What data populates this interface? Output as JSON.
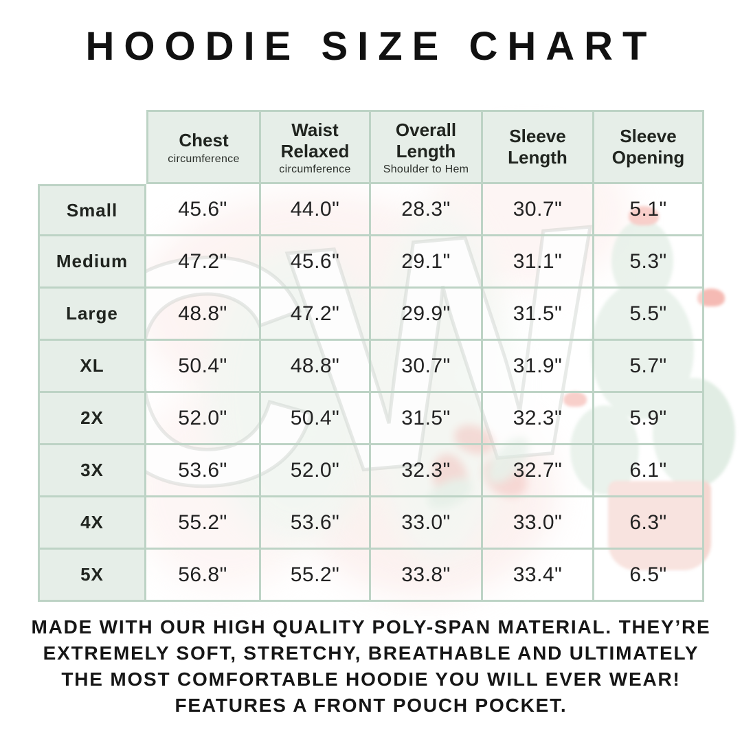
{
  "title": "HOODIE SIZE CHART",
  "watermark": {
    "text": "CW"
  },
  "colors": {
    "grid_line": "#bdd3c5",
    "header_bg": "#e6eee8",
    "title_text": "#111111",
    "body_text": "#222222",
    "watermark_pink": "#fbe7e5",
    "watermark_green": "#d7e7db",
    "watermark_flower": "#f2a49b"
  },
  "table": {
    "columns": [
      {
        "label": "Chest",
        "sub": "circumference"
      },
      {
        "label": "Waist Relaxed",
        "sub": "circumference"
      },
      {
        "label": "Overall Length",
        "sub": "Shoulder to Hem"
      },
      {
        "label": "Sleeve Length",
        "sub": ""
      },
      {
        "label": "Sleeve Opening",
        "sub": ""
      }
    ],
    "rows": [
      {
        "size": "Small",
        "values": [
          "45.6\"",
          "44.0\"",
          "28.3\"",
          "30.7\"",
          "5.1\""
        ]
      },
      {
        "size": "Medium",
        "values": [
          "47.2\"",
          "45.6\"",
          "29.1\"",
          "31.1\"",
          "5.3\""
        ]
      },
      {
        "size": "Large",
        "values": [
          "48.8\"",
          "47.2\"",
          "29.9\"",
          "31.5\"",
          "5.5\""
        ]
      },
      {
        "size": "XL",
        "values": [
          "50.4\"",
          "48.8\"",
          "30.7\"",
          "31.9\"",
          "5.7\""
        ]
      },
      {
        "size": "2X",
        "values": [
          "52.0\"",
          "50.4\"",
          "31.5\"",
          "32.3\"",
          "5.9\""
        ]
      },
      {
        "size": "3X",
        "values": [
          "53.6\"",
          "52.0\"",
          "32.3\"",
          "32.7\"",
          "6.1\""
        ]
      },
      {
        "size": "4X",
        "values": [
          "55.2\"",
          "53.6\"",
          "33.0\"",
          "33.0\"",
          "6.3\""
        ]
      },
      {
        "size": "5X",
        "values": [
          "56.8\"",
          "55.2\"",
          "33.8\"",
          "33.4\"",
          "6.5\""
        ]
      }
    ]
  },
  "footer_lines": [
    "MADE WITH OUR HIGH QUALITY POLY-SPAN MATERIAL. THEY’RE",
    "EXTREMELY SOFT, STRETCHY, BREATHABLE AND ULTIMATELY",
    "THE MOST COMFORTABLE HOODIE YOU WILL EVER WEAR!",
    "FEATURES A FRONT POUCH POCKET."
  ]
}
